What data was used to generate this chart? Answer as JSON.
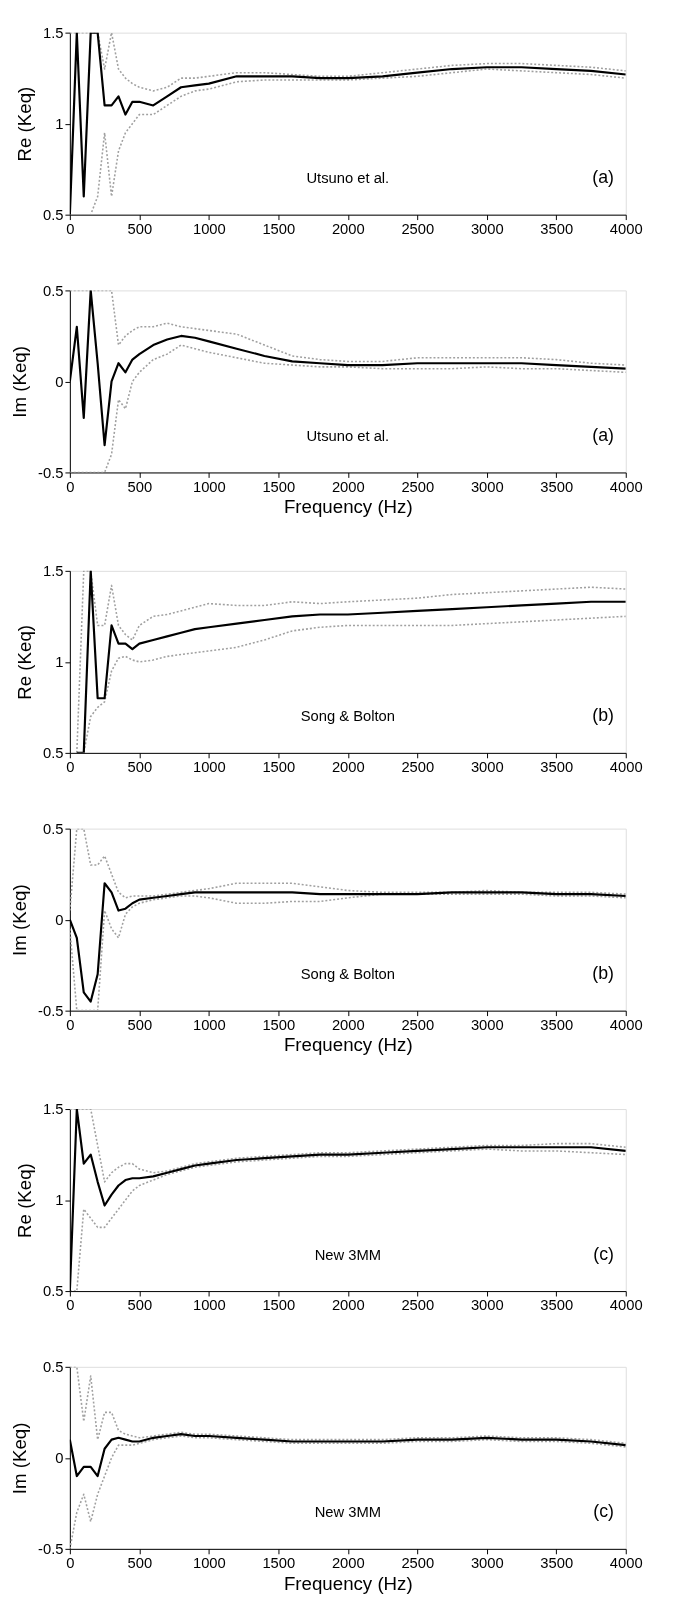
{
  "chart_data": [
    {
      "type": "line",
      "ylabel": "Re (Keq)",
      "annotations": [
        "Utsuno et al.",
        "(a)"
      ],
      "x": [
        0,
        50,
        100,
        150,
        200,
        250,
        300,
        350,
        400,
        450,
        500,
        600,
        700,
        800,
        900,
        1000,
        1200,
        1400,
        1600,
        1800,
        2000,
        2250,
        2500,
        2750,
        3000,
        3250,
        3500,
        3750,
        4000
      ],
      "xlim": [
        0,
        4000
      ],
      "xticks": [
        0,
        500,
        1000,
        1500,
        2000,
        2500,
        3000,
        3500,
        4000
      ],
      "ylim": [
        0.5,
        1.5
      ],
      "yticks": [
        0.5,
        1,
        1.5
      ],
      "grid": false,
      "series": [
        {
          "color": "#a0a0a0",
          "line_style": "dotted",
          "values": [
            1.5,
            1.5,
            1.5,
            1.5,
            1.5,
            1.3,
            1.5,
            1.3,
            1.25,
            1.22,
            1.2,
            1.18,
            1.2,
            1.25,
            1.25,
            1.26,
            1.28,
            1.28,
            1.27,
            1.26,
            1.26,
            1.28,
            1.3,
            1.32,
            1.33,
            1.33,
            1.32,
            1.31,
            1.29
          ]
        },
        {
          "color": "#a0a0a0",
          "line_style": "dotted",
          "values": [
            0.5,
            0.5,
            0.5,
            0.5,
            0.6,
            0.95,
            0.6,
            0.85,
            0.95,
            1.0,
            1.05,
            1.05,
            1.1,
            1.15,
            1.18,
            1.19,
            1.23,
            1.24,
            1.24,
            1.24,
            1.24,
            1.25,
            1.26,
            1.28,
            1.3,
            1.29,
            1.28,
            1.27,
            1.25
          ]
        },
        {
          "color": "#000000",
          "line_style": "solid",
          "values": [
            0.5,
            1.5,
            0.6,
            1.5,
            1.5,
            1.1,
            1.1,
            1.15,
            1.05,
            1.12,
            1.12,
            1.1,
            1.15,
            1.2,
            1.21,
            1.22,
            1.26,
            1.26,
            1.26,
            1.25,
            1.25,
            1.26,
            1.28,
            1.3,
            1.31,
            1.31,
            1.3,
            1.29,
            1.27
          ]
        }
      ]
    },
    {
      "type": "line",
      "xlabel": "Frequency (Hz)",
      "ylabel": "Im (Keq)",
      "annotations": [
        "Utsuno et al.",
        "(a)"
      ],
      "x": [
        0,
        50,
        100,
        150,
        200,
        250,
        300,
        350,
        400,
        450,
        500,
        600,
        700,
        800,
        900,
        1000,
        1200,
        1400,
        1600,
        1800,
        2000,
        2250,
        2500,
        2750,
        3000,
        3250,
        3500,
        3750,
        4000
      ],
      "xlim": [
        0,
        4000
      ],
      "xticks": [
        0,
        500,
        1000,
        1500,
        2000,
        2500,
        3000,
        3500,
        4000
      ],
      "ylim": [
        -0.5,
        0.5
      ],
      "yticks": [
        -0.5,
        0,
        0.5
      ],
      "grid": false,
      "series": [
        {
          "color": "#a0a0a0",
          "line_style": "dotted",
          "values": [
            0.5,
            0.5,
            0.5,
            0.5,
            0.5,
            0.5,
            0.5,
            0.2,
            0.25,
            0.28,
            0.3,
            0.3,
            0.32,
            0.3,
            0.29,
            0.28,
            0.26,
            0.2,
            0.14,
            0.12,
            0.11,
            0.11,
            0.13,
            0.13,
            0.13,
            0.13,
            0.12,
            0.1,
            0.09
          ]
        },
        {
          "color": "#a0a0a0",
          "line_style": "dotted",
          "values": [
            -0.5,
            -0.5,
            -0.5,
            -0.5,
            -0.5,
            -0.5,
            -0.4,
            -0.1,
            -0.15,
            0.0,
            0.05,
            0.12,
            0.15,
            0.2,
            0.18,
            0.16,
            0.13,
            0.1,
            0.09,
            0.08,
            0.08,
            0.07,
            0.07,
            0.07,
            0.08,
            0.07,
            0.07,
            0.06,
            0.05
          ]
        },
        {
          "color": "#000000",
          "line_style": "solid",
          "values": [
            0.0,
            0.3,
            -0.2,
            0.5,
            0.1,
            -0.35,
            0.0,
            0.1,
            0.05,
            0.12,
            0.15,
            0.2,
            0.23,
            0.25,
            0.24,
            0.22,
            0.18,
            0.14,
            0.11,
            0.1,
            0.09,
            0.09,
            0.1,
            0.1,
            0.1,
            0.1,
            0.09,
            0.08,
            0.07
          ]
        }
      ]
    },
    {
      "type": "line",
      "ylabel": "Re (Keq)",
      "annotations": [
        "Song & Bolton",
        "(b)"
      ],
      "x": [
        50,
        100,
        150,
        200,
        250,
        300,
        350,
        400,
        450,
        500,
        600,
        700,
        800,
        900,
        1000,
        1200,
        1400,
        1600,
        1800,
        2000,
        2250,
        2500,
        2750,
        3000,
        3250,
        3500,
        3750,
        4000
      ],
      "xlim": [
        0,
        4000
      ],
      "xticks": [
        0,
        500,
        1000,
        1500,
        2000,
        2500,
        3000,
        3500,
        4000
      ],
      "ylim": [
        0.5,
        1.5
      ],
      "yticks": [
        0.5,
        1,
        1.5
      ],
      "grid": false,
      "series": [
        {
          "color": "#a0a0a0",
          "line_style": "dotted",
          "values": [
            0.5,
            1.5,
            1.5,
            1.2,
            1.2,
            1.42,
            1.2,
            1.15,
            1.12,
            1.2,
            1.25,
            1.26,
            1.28,
            1.3,
            1.32,
            1.31,
            1.31,
            1.33,
            1.32,
            1.33,
            1.34,
            1.35,
            1.37,
            1.38,
            1.39,
            1.4,
            1.41,
            1.4
          ]
        },
        {
          "color": "#a0a0a0",
          "line_style": "dotted",
          "values": [
            0.5,
            0.5,
            0.7,
            0.75,
            0.78,
            0.95,
            1.02,
            1.03,
            1.01,
            1.0,
            1.01,
            1.03,
            1.04,
            1.05,
            1.06,
            1.08,
            1.12,
            1.17,
            1.19,
            1.2,
            1.2,
            1.2,
            1.2,
            1.21,
            1.22,
            1.23,
            1.24,
            1.25
          ]
        },
        {
          "color": "#000000",
          "line_style": "solid",
          "values": [
            0.5,
            0.5,
            1.5,
            0.8,
            0.8,
            1.2,
            1.1,
            1.1,
            1.07,
            1.1,
            1.12,
            1.14,
            1.16,
            1.18,
            1.19,
            1.21,
            1.23,
            1.25,
            1.26,
            1.26,
            1.27,
            1.28,
            1.29,
            1.3,
            1.31,
            1.32,
            1.33,
            1.33
          ]
        }
      ]
    },
    {
      "type": "line",
      "xlabel": "Frequency (Hz)",
      "ylabel": "Im (Keq)",
      "annotations": [
        "Song & Bolton",
        "(b)"
      ],
      "x": [
        0,
        50,
        100,
        150,
        200,
        250,
        300,
        350,
        400,
        450,
        500,
        600,
        700,
        800,
        900,
        1000,
        1200,
        1400,
        1600,
        1800,
        2000,
        2250,
        2500,
        2750,
        3000,
        3250,
        3500,
        3750,
        4000
      ],
      "xlim": [
        0,
        4000
      ],
      "xticks": [
        0,
        500,
        1000,
        1500,
        2000,
        2500,
        3000,
        3500,
        4000
      ],
      "ylim": [
        -0.5,
        0.5
      ],
      "yticks": [
        -0.5,
        0,
        0.5
      ],
      "grid": false,
      "series": [
        {
          "color": "#a0a0a0",
          "line_style": "dotted",
          "values": [
            0.05,
            0.5,
            0.5,
            0.3,
            0.3,
            0.35,
            0.25,
            0.15,
            0.12,
            0.13,
            0.13,
            0.13,
            0.14,
            0.15,
            0.16,
            0.17,
            0.2,
            0.2,
            0.2,
            0.18,
            0.16,
            0.15,
            0.15,
            0.15,
            0.16,
            0.15,
            0.15,
            0.15,
            0.14
          ]
        },
        {
          "color": "#a0a0a0",
          "line_style": "dotted",
          "values": [
            -0.05,
            -0.5,
            -0.5,
            -0.5,
            -0.5,
            0.05,
            -0.05,
            -0.1,
            0.03,
            0.07,
            0.09,
            0.11,
            0.12,
            0.13,
            0.13,
            0.12,
            0.09,
            0.09,
            0.1,
            0.1,
            0.12,
            0.14,
            0.14,
            0.14,
            0.14,
            0.14,
            0.13,
            0.13,
            0.12
          ]
        },
        {
          "color": "#000000",
          "line_style": "solid",
          "values": [
            0.0,
            -0.1,
            -0.4,
            -0.45,
            -0.3,
            0.2,
            0.15,
            0.05,
            0.06,
            0.09,
            0.11,
            0.12,
            0.13,
            0.14,
            0.15,
            0.15,
            0.15,
            0.15,
            0.15,
            0.14,
            0.14,
            0.14,
            0.14,
            0.15,
            0.15,
            0.15,
            0.14,
            0.14,
            0.13
          ]
        }
      ]
    },
    {
      "type": "line",
      "ylabel": "Re (Keq)",
      "annotations": [
        "New 3MM",
        "(c)"
      ],
      "x": [
        0,
        50,
        100,
        150,
        200,
        250,
        300,
        350,
        400,
        450,
        500,
        600,
        700,
        800,
        900,
        1000,
        1200,
        1400,
        1600,
        1800,
        2000,
        2250,
        2500,
        2750,
        3000,
        3250,
        3500,
        3750,
        4000
      ],
      "xlim": [
        0,
        4000
      ],
      "xticks": [
        0,
        500,
        1000,
        1500,
        2000,
        2500,
        3000,
        3500,
        4000
      ],
      "ylim": [
        0.5,
        1.5
      ],
      "yticks": [
        0.5,
        1,
        1.5
      ],
      "grid": false,
      "series": [
        {
          "color": "#a0a0a0",
          "line_style": "dotted",
          "values": [
            1.5,
            1.5,
            1.5,
            1.5,
            1.3,
            1.1,
            1.15,
            1.18,
            1.2,
            1.2,
            1.17,
            1.15,
            1.16,
            1.18,
            1.2,
            1.21,
            1.23,
            1.24,
            1.25,
            1.26,
            1.26,
            1.27,
            1.28,
            1.29,
            1.3,
            1.3,
            1.31,
            1.31,
            1.29
          ]
        },
        {
          "color": "#a0a0a0",
          "line_style": "dotted",
          "values": [
            0.5,
            0.5,
            0.95,
            0.9,
            0.85,
            0.85,
            0.9,
            0.95,
            1.0,
            1.05,
            1.08,
            1.11,
            1.14,
            1.16,
            1.18,
            1.19,
            1.21,
            1.22,
            1.23,
            1.24,
            1.24,
            1.25,
            1.26,
            1.27,
            1.28,
            1.27,
            1.27,
            1.26,
            1.25
          ]
        },
        {
          "color": "#000000",
          "line_style": "solid",
          "values": [
            0.5,
            1.5,
            1.2,
            1.25,
            1.1,
            0.97,
            1.03,
            1.08,
            1.11,
            1.12,
            1.12,
            1.13,
            1.15,
            1.17,
            1.19,
            1.2,
            1.22,
            1.23,
            1.24,
            1.25,
            1.25,
            1.26,
            1.27,
            1.28,
            1.29,
            1.29,
            1.29,
            1.29,
            1.27
          ]
        }
      ]
    },
    {
      "type": "line",
      "xlabel": "Frequency (Hz)",
      "ylabel": "Im (Keq)",
      "annotations": [
        "New 3MM",
        "(c)"
      ],
      "x": [
        0,
        50,
        100,
        150,
        200,
        250,
        300,
        350,
        400,
        450,
        500,
        600,
        700,
        800,
        900,
        1000,
        1200,
        1400,
        1600,
        1800,
        2000,
        2250,
        2500,
        2750,
        3000,
        3250,
        3500,
        3750,
        4000
      ],
      "xlim": [
        0,
        4000
      ],
      "xticks": [
        0,
        500,
        1000,
        1500,
        2000,
        2500,
        3000,
        3500,
        4000
      ],
      "ylim": [
        -0.5,
        0.5
      ],
      "yticks": [
        -0.5,
        0,
        0.5
      ],
      "grid": false,
      "series": [
        {
          "color": "#a0a0a0",
          "line_style": "dotted",
          "values": [
            0.5,
            0.5,
            0.2,
            0.45,
            0.1,
            0.25,
            0.25,
            0.15,
            0.13,
            0.12,
            0.11,
            0.12,
            0.13,
            0.14,
            0.13,
            0.13,
            0.12,
            0.11,
            0.1,
            0.1,
            0.1,
            0.1,
            0.11,
            0.11,
            0.12,
            0.11,
            0.11,
            0.1,
            0.08
          ]
        },
        {
          "color": "#a0a0a0",
          "line_style": "dotted",
          "values": [
            -0.5,
            -0.3,
            -0.2,
            -0.35,
            -0.2,
            -0.1,
            0.0,
            0.07,
            0.07,
            0.07,
            0.08,
            0.1,
            0.11,
            0.12,
            0.11,
            0.11,
            0.1,
            0.09,
            0.08,
            0.08,
            0.08,
            0.08,
            0.09,
            0.09,
            0.1,
            0.09,
            0.09,
            0.08,
            0.06
          ]
        },
        {
          "color": "#000000",
          "line_style": "solid",
          "values": [
            0.1,
            -0.1,
            -0.05,
            -0.05,
            -0.1,
            0.05,
            0.1,
            0.11,
            0.1,
            0.09,
            0.09,
            0.11,
            0.12,
            0.13,
            0.12,
            0.12,
            0.11,
            0.1,
            0.09,
            0.09,
            0.09,
            0.09,
            0.1,
            0.1,
            0.11,
            0.1,
            0.1,
            0.09,
            0.07
          ]
        }
      ]
    }
  ]
}
